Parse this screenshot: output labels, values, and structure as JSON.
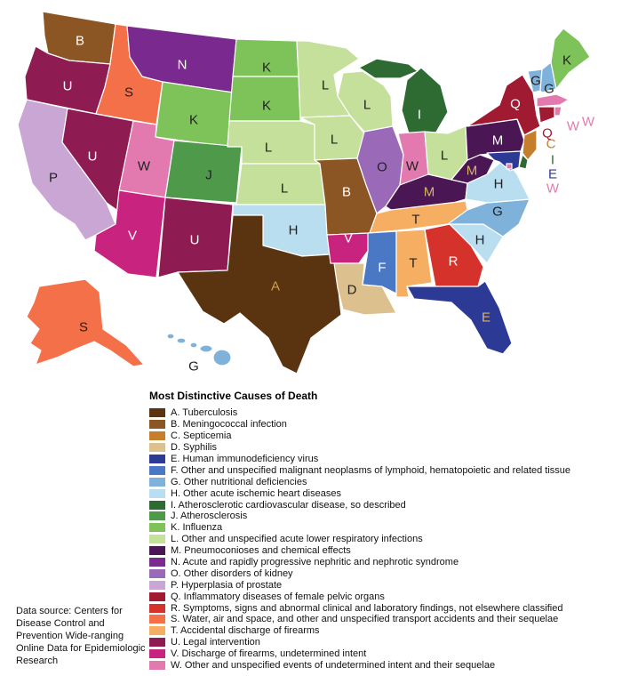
{
  "legend": {
    "title": "Most Distinctive Causes of Death",
    "items": [
      {
        "code": "A",
        "label": "A. Tuberculosis",
        "color": "#5a3410"
      },
      {
        "code": "B",
        "label": "B. Meningococcal infection",
        "color": "#8b5524"
      },
      {
        "code": "C",
        "label": "C. Septicemia",
        "color": "#c47e2c"
      },
      {
        "code": "D",
        "label": "D. Syphilis",
        "color": "#dcc08e"
      },
      {
        "code": "E",
        "label": "E. Human immunodeficiency virus",
        "color": "#2c3a96"
      },
      {
        "code": "F",
        "label": "F. Other and unspecified malignant neoplasms of lymphoid, hematopoietic and related tissue",
        "color": "#4a78c4"
      },
      {
        "code": "G",
        "label": "G. Other nutritional deficiencies",
        "color": "#7eb2da"
      },
      {
        "code": "H",
        "label": "H. Other acute ischemic heart diseases",
        "color": "#b9def0"
      },
      {
        "code": "I",
        "label": "I. Atherosclerotic cardiovascular disease, so described",
        "color": "#2e6b32"
      },
      {
        "code": "J",
        "label": "J. Atherosclerosis",
        "color": "#4f9a4a"
      },
      {
        "code": "K",
        "label": "K. Influenza",
        "color": "#7ec25a"
      },
      {
        "code": "L",
        "label": "L. Other and unspecified acute lower respiratory infections",
        "color": "#c4e09a"
      },
      {
        "code": "M",
        "label": "M. Pneumoconioses and chemical effects",
        "color": "#4a1654"
      },
      {
        "code": "N",
        "label": "N. Acute and rapidly progressive nephritic and nephrotic syndrome",
        "color": "#7a2a8e"
      },
      {
        "code": "O",
        "label": "O. Other disorders of kidney",
        "color": "#9a6ab8"
      },
      {
        "code": "P",
        "label": "P. Hyperplasia of prostate",
        "color": "#c9a6d4"
      },
      {
        "code": "Q",
        "label": "Q. Inflammatory diseases of female pelvic organs",
        "color": "#a01a32"
      },
      {
        "code": "R",
        "label": "R. Symptoms, signs and abnormal clinical and laboratory findings, not elsewhere classified",
        "color": "#d6322c"
      },
      {
        "code": "S",
        "label": "S. Water, air and space, and other and unspecified transport accidents and their sequelae",
        "color": "#f47048"
      },
      {
        "code": "T",
        "label": "T. Accidental discharge of firearms",
        "color": "#f5ae62"
      },
      {
        "code": "U",
        "label": "U. Legal intervention",
        "color": "#8e1c52"
      },
      {
        "code": "V",
        "label": "V. Discharge of firearms, undetermined intent",
        "color": "#c8237e"
      },
      {
        "code": "W",
        "label": "W. Other and unspecified events of undetermined intent and their sequelae",
        "color": "#e27ab0"
      }
    ]
  },
  "source_note": "Data source: Centers for Disease Control and Prevention Wide-ranging Online Data for Epidemiologic Research",
  "states": [
    {
      "id": "WA",
      "code": "B"
    },
    {
      "id": "OR",
      "code": "U"
    },
    {
      "id": "CA",
      "code": "P"
    },
    {
      "id": "NV",
      "code": "U"
    },
    {
      "id": "ID",
      "code": "S"
    },
    {
      "id": "MT",
      "code": "N"
    },
    {
      "id": "WY",
      "code": "K"
    },
    {
      "id": "UT",
      "code": "W"
    },
    {
      "id": "AZ",
      "code": "V"
    },
    {
      "id": "CO",
      "code": "J"
    },
    {
      "id": "NM",
      "code": "U"
    },
    {
      "id": "ND",
      "code": "K"
    },
    {
      "id": "SD",
      "code": "K"
    },
    {
      "id": "NE",
      "code": "L"
    },
    {
      "id": "KS",
      "code": "L"
    },
    {
      "id": "OK",
      "code": "H"
    },
    {
      "id": "TX",
      "code": "A"
    },
    {
      "id": "MN",
      "code": "L"
    },
    {
      "id": "IA",
      "code": "L"
    },
    {
      "id": "MO",
      "code": "B"
    },
    {
      "id": "AR",
      "code": "V"
    },
    {
      "id": "LA",
      "code": "D"
    },
    {
      "id": "WI",
      "code": "L"
    },
    {
      "id": "IL",
      "code": "O"
    },
    {
      "id": "MI",
      "code": "I"
    },
    {
      "id": "IN",
      "code": "W"
    },
    {
      "id": "OH",
      "code": "L"
    },
    {
      "id": "KY",
      "code": "M"
    },
    {
      "id": "TN",
      "code": "T"
    },
    {
      "id": "MS",
      "code": "F"
    },
    {
      "id": "AL",
      "code": "T"
    },
    {
      "id": "GA",
      "code": "R"
    },
    {
      "id": "FL",
      "code": "E"
    },
    {
      "id": "SC",
      "code": "H"
    },
    {
      "id": "NC",
      "code": "G"
    },
    {
      "id": "VA",
      "code": "H"
    },
    {
      "id": "WV",
      "code": "M"
    },
    {
      "id": "PA",
      "code": "M"
    },
    {
      "id": "NY",
      "code": "Q"
    },
    {
      "id": "VT",
      "code": "G"
    },
    {
      "id": "NH",
      "code": "G"
    },
    {
      "id": "ME",
      "code": "K"
    },
    {
      "id": "MA",
      "code": "W"
    },
    {
      "id": "RI",
      "code": "W"
    },
    {
      "id": "CT",
      "code": "Q"
    },
    {
      "id": "NJ",
      "code": "C"
    },
    {
      "id": "DE",
      "code": "I"
    },
    {
      "id": "MD",
      "code": "E"
    },
    {
      "id": "DC",
      "code": "W"
    },
    {
      "id": "AK",
      "code": "S"
    },
    {
      "id": "HI",
      "code": "G"
    }
  ]
}
